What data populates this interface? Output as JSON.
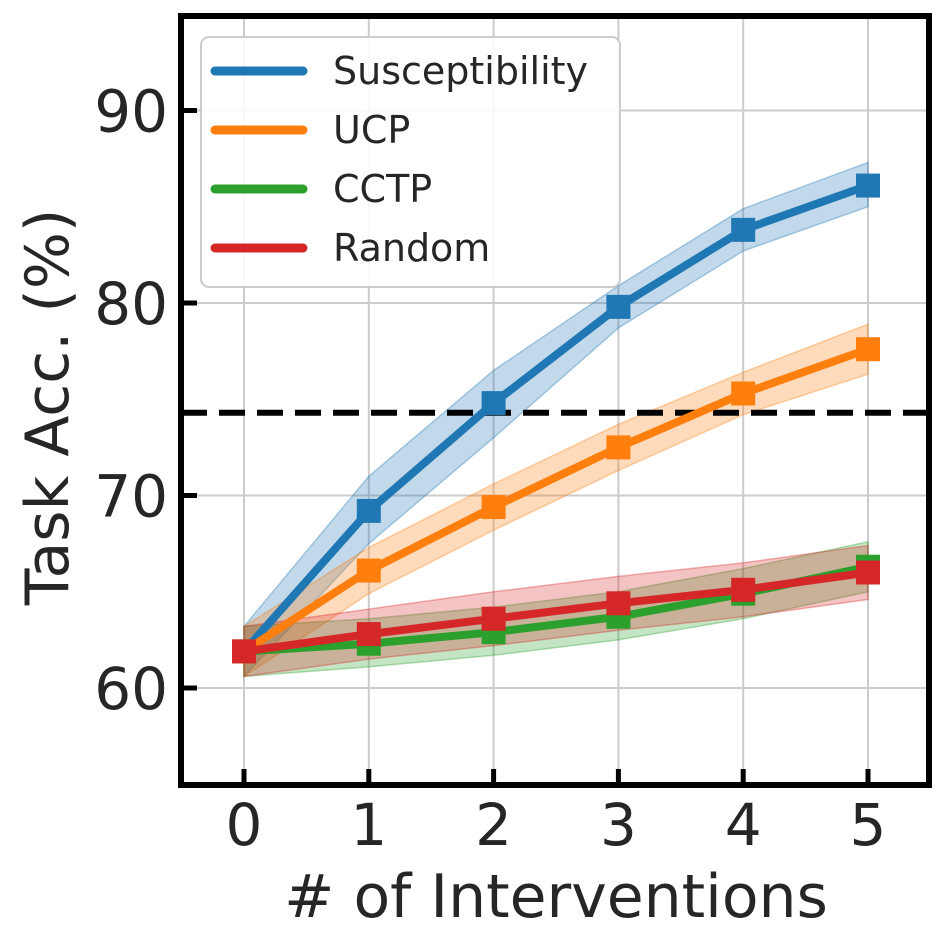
{
  "chart_data": {
    "type": "line",
    "title": "",
    "xlabel": "# of Interventions",
    "ylabel": "Task Acc. (%)",
    "x": [
      0,
      1,
      2,
      3,
      4,
      5
    ],
    "xlim": [
      -0.5,
      5.5
    ],
    "ylim": [
      55,
      95
    ],
    "xticks": [
      0,
      1,
      2,
      3,
      4,
      5
    ],
    "yticks": [
      60,
      70,
      80,
      90
    ],
    "grid": true,
    "legend_position": "top-left",
    "reference_line": {
      "y": 74.3,
      "style": "dashed",
      "color": "#000000"
    },
    "series": [
      {
        "name": "Susceptibility",
        "color": "#1f77b4",
        "values": [
          61.9,
          69.2,
          74.8,
          79.8,
          83.8,
          86.1
        ],
        "lower": [
          60.6,
          67.5,
          73.0,
          78.7,
          82.7,
          85.0
        ],
        "upper": [
          63.2,
          71.0,
          76.5,
          80.9,
          84.9,
          87.3
        ]
      },
      {
        "name": "UCP",
        "color": "#ff7f0e",
        "values": [
          61.9,
          66.1,
          69.4,
          72.5,
          75.3,
          77.6
        ],
        "lower": [
          60.6,
          64.9,
          68.2,
          71.3,
          74.2,
          76.3
        ],
        "upper": [
          63.2,
          67.3,
          70.6,
          73.7,
          76.4,
          78.9
        ]
      },
      {
        "name": "CCTP",
        "color": "#2ca02c",
        "values": [
          61.9,
          62.3,
          62.9,
          63.7,
          64.9,
          66.3
        ],
        "lower": [
          60.6,
          61.1,
          61.7,
          62.5,
          63.6,
          65.0
        ],
        "upper": [
          63.2,
          63.6,
          64.2,
          65.0,
          66.2,
          67.6
        ]
      },
      {
        "name": "Random",
        "color": "#d62728",
        "values": [
          61.9,
          62.8,
          63.6,
          64.4,
          65.1,
          66.0
        ],
        "lower": [
          60.6,
          61.5,
          62.2,
          63.0,
          63.7,
          64.6
        ],
        "upper": [
          63.2,
          64.1,
          65.0,
          65.8,
          66.5,
          67.4
        ]
      }
    ]
  }
}
